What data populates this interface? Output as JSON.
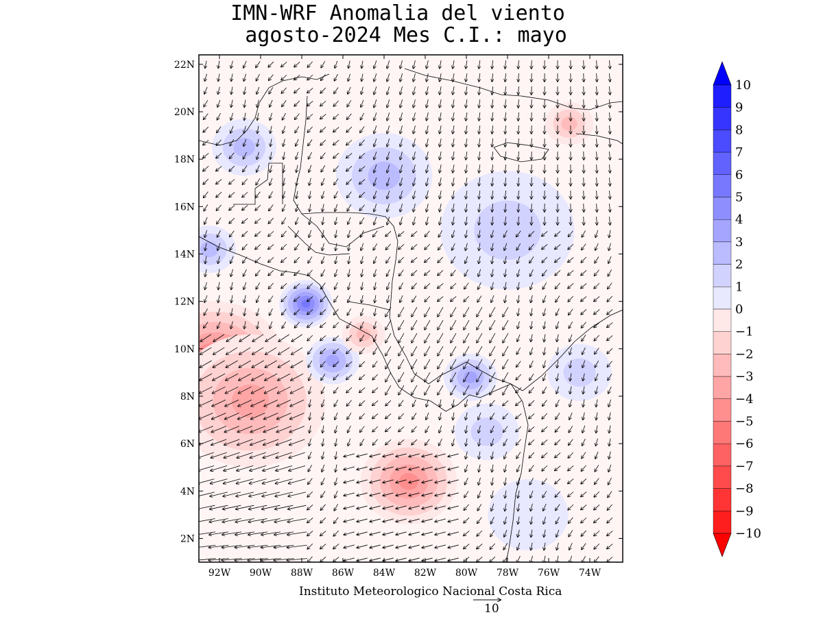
{
  "title": {
    "line1": "IMN-WRF Anomalia del viento",
    "line2": "agosto-2024 Mes C.I.: mayo"
  },
  "credit": "Instituto Meteorologico Nacional Costa Rica",
  "reference_vector": {
    "value": "10"
  },
  "map": {
    "lat_ticks": [
      "2N",
      "4N",
      "6N",
      "8N",
      "10N",
      "12N",
      "14N",
      "16N",
      "18N",
      "20N",
      "22N"
    ],
    "lon_ticks": [
      "92W",
      "90W",
      "88W",
      "86W",
      "84W",
      "82W",
      "80W",
      "78W",
      "76W",
      "74W"
    ],
    "lat_range": [
      1,
      22.4
    ],
    "lon_range": [
      -93,
      -72.4
    ],
    "anomaly_regions": [
      {
        "lon": -92.2,
        "lat": 9.4,
        "value": -6,
        "spread": 2.6
      },
      {
        "lon": -90.5,
        "lat": 7.8,
        "value": -4,
        "spread": 2.8
      },
      {
        "lon": -82.8,
        "lat": 4.4,
        "value": -4.5,
        "spread": 1.8
      },
      {
        "lon": -87.8,
        "lat": 11.9,
        "value": 6,
        "spread": 1.0
      },
      {
        "lon": -86.5,
        "lat": 9.5,
        "value": 3.5,
        "spread": 1.0
      },
      {
        "lon": -79.8,
        "lat": 8.8,
        "value": 4,
        "spread": 1.0
      },
      {
        "lon": -92.5,
        "lat": 14.2,
        "value": 3,
        "spread": 1.0
      },
      {
        "lon": -90.8,
        "lat": 18.5,
        "value": 2.5,
        "spread": 1.2
      },
      {
        "lon": -84,
        "lat": 17.3,
        "value": 2.5,
        "spread": 1.8
      },
      {
        "lon": -78,
        "lat": 15,
        "value": 1.5,
        "spread": 2.5
      },
      {
        "lon": -75,
        "lat": 19.5,
        "value": -2.5,
        "spread": 0.9
      },
      {
        "lon": -85,
        "lat": 10.6,
        "value": -3,
        "spread": 0.8
      },
      {
        "lon": -74.5,
        "lat": 9,
        "value": 1.5,
        "spread": 1.2
      },
      {
        "lon": -79,
        "lat": 6.5,
        "value": 1.5,
        "spread": 1.2
      },
      {
        "lon": -77,
        "lat": 3,
        "value": 1.2,
        "spread": 1.5
      }
    ]
  },
  "colorbar": {
    "labels": [
      "10",
      "9",
      "8",
      "7",
      "6",
      "5",
      "4",
      "3",
      "2",
      "1",
      "0",
      "−1",
      "−2",
      "−3",
      "−4",
      "−5",
      "−6",
      "−7",
      "−8",
      "−9",
      "−10"
    ],
    "colors": [
      "#1e1eff",
      "#3535ff",
      "#4b4bff",
      "#6262ff",
      "#7878ff",
      "#8e8eff",
      "#a5a5ff",
      "#bbbbff",
      "#d2d2ff",
      "#e8e8ff",
      "#ffffff",
      "#ffe8e8",
      "#ffd2d2",
      "#ffbbbb",
      "#ffa5a5",
      "#ff8e8e",
      "#ff7878",
      "#ff6262",
      "#ff4b4b",
      "#ff3535",
      "#ff1e1e"
    ],
    "arrow_top_color": "#0000ff",
    "arrow_bottom_color": "#ff0000"
  }
}
